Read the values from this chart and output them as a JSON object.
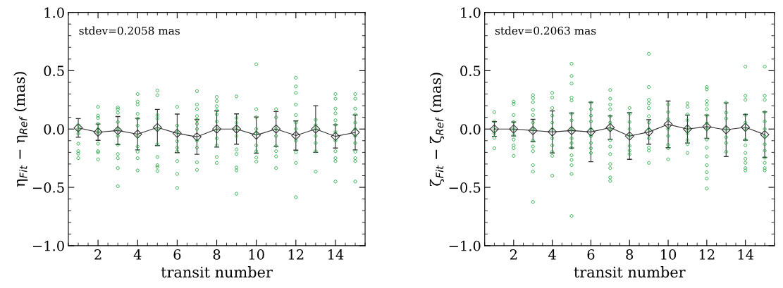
{
  "chart_data": [
    {
      "type": "scatter",
      "xlabel": "transit number",
      "ylabel": "η$_{Fit}$ − η$_{Ref}$ (mas)",
      "xlim": [
        0.5,
        15.5
      ],
      "xticks": [
        2,
        4,
        6,
        8,
        10,
        12,
        14
      ],
      "ylim": [
        -1.0,
        1.0
      ],
      "yticks": [
        {
          "value": -1.0,
          "label": "−1.0"
        },
        {
          "value": -0.5,
          "label": "−0.5"
        },
        {
          "value": 0.0,
          "label": "0.0"
        },
        {
          "value": 0.5,
          "label": "0.5"
        },
        {
          "value": 1.0,
          "label": "1.0"
        }
      ],
      "annotations": [
        "stdev=0.2058 mas"
      ],
      "series": [
        {
          "marker": "circle",
          "color": "#22aa44",
          "x": [
            1,
            1,
            1,
            1,
            1,
            1,
            1,
            2,
            2,
            2,
            2,
            2,
            2,
            2,
            2,
            2,
            2,
            3,
            3,
            3,
            3,
            3,
            3,
            3,
            3,
            3,
            3,
            3,
            4,
            4,
            4,
            4,
            4,
            4,
            4,
            4,
            4,
            4,
            4,
            5,
            5,
            5,
            5,
            5,
            5,
            5,
            5,
            5,
            5,
            6,
            6,
            6,
            6,
            6,
            6,
            6,
            6,
            6,
            7,
            7,
            7,
            7,
            7,
            7,
            7,
            7,
            7,
            7,
            7,
            8,
            8,
            8,
            8,
            8,
            8,
            8,
            8,
            8,
            8,
            8,
            9,
            9,
            9,
            9,
            9,
            9,
            9,
            9,
            9,
            9,
            10,
            10,
            10,
            10,
            10,
            10,
            10,
            10,
            10,
            11,
            11,
            11,
            11,
            11,
            11,
            11,
            11,
            12,
            12,
            12,
            12,
            12,
            12,
            12,
            12,
            12,
            12,
            12,
            13,
            13,
            13,
            13,
            13,
            13,
            13,
            14,
            14,
            14,
            14,
            14,
            14,
            14,
            14,
            14,
            14,
            14,
            14,
            15,
            15,
            15,
            15,
            15,
            15,
            15,
            15,
            15,
            15,
            15,
            15
          ],
          "values": [
            0.035,
            0,
            -0.04,
            -0.125,
            -0.19,
            -0.21,
            -0.25,
            0.19,
            0.115,
            0.095,
            0.045,
            0,
            -0.03,
            -0.125,
            -0.19,
            -0.2,
            -0.26,
            0.185,
            0.17,
            0.14,
            0.06,
            0,
            -0.06,
            -0.135,
            -0.215,
            -0.25,
            -0.335,
            -0.49,
            0.3,
            0.235,
            0.21,
            0.13,
            0.09,
            0.03,
            -0.06,
            -0.15,
            -0.195,
            -0.25,
            -0.355,
            0.33,
            0.29,
            0.12,
            0.09,
            0,
            -0.13,
            -0.24,
            -0.31,
            -0.325,
            -0.36,
            0.19,
            0.03,
            -0.03,
            -0.105,
            -0.16,
            -0.19,
            -0.275,
            -0.385,
            -0.505,
            0.325,
            0.21,
            0.17,
            0.11,
            0.075,
            0.045,
            0,
            -0.1,
            -0.16,
            -0.285,
            -0.35,
            0.275,
            0.24,
            0.195,
            0.16,
            0.125,
            0.065,
            0,
            -0.08,
            -0.14,
            -0.24,
            -0.29,
            0.28,
            0.095,
            0.055,
            0,
            -0.06,
            -0.175,
            -0.215,
            -0.33,
            -0.355,
            -0.555,
            0.555,
            0.17,
            0.1,
            0,
            -0.04,
            -0.14,
            -0.19,
            -0.245,
            -0.28,
            0.17,
            0.1,
            0,
            -0.06,
            -0.145,
            -0.19,
            -0.235,
            -0.335,
            0.44,
            0.365,
            0.31,
            0.21,
            0.12,
            0.055,
            0,
            -0.1,
            -0.2,
            -0.29,
            -0.585,
            0.08,
            0.035,
            0,
            -0.06,
            -0.12,
            -0.19,
            -0.365,
            0.3,
            0.26,
            0.175,
            0.135,
            0.075,
            0.035,
            -0.025,
            -0.1,
            -0.19,
            -0.25,
            -0.275,
            -0.45,
            0.3,
            0.26,
            0.175,
            0.125,
            0.055,
            0,
            -0.06,
            -0.12,
            -0.195,
            -0.25,
            -0.275,
            -0.45
          ]
        },
        {
          "type": "line",
          "marker": "diamond",
          "color": "#333333",
          "x": [
            1,
            2,
            3,
            4,
            5,
            6,
            7,
            8,
            9,
            10,
            11,
            12,
            13,
            14,
            15
          ],
          "values": [
            0.01,
            -0.027,
            -0.013,
            -0.044,
            0.013,
            -0.037,
            -0.067,
            0,
            0,
            -0.052,
            0,
            -0.056,
            0,
            -0.063,
            -0.029
          ],
          "errors": [
            0.08,
            0.07,
            0.12,
            0.135,
            0.155,
            0.165,
            0.15,
            0.155,
            0.13,
            0.155,
            0.15,
            0.125,
            0.2,
            0.1,
            0.15
          ]
        }
      ]
    },
    {
      "type": "scatter",
      "xlabel": "transit number",
      "ylabel": "ζ$_{Fit}$ − ζ$_{Ref}$ (mas)",
      "xlim": [
        0.5,
        15.5
      ],
      "xticks": [
        2,
        4,
        6,
        8,
        10,
        12,
        14
      ],
      "ylim": [
        -1.0,
        1.0
      ],
      "yticks": [
        {
          "value": -1.0,
          "label": "−1.0"
        },
        {
          "value": -0.5,
          "label": "−0.5"
        },
        {
          "value": 0.0,
          "label": "0.0"
        },
        {
          "value": 0.5,
          "label": "0.5"
        },
        {
          "value": 1.0,
          "label": "1.0"
        }
      ],
      "annotations": [
        "stdev=0.2063 mas"
      ],
      "series": [
        {
          "marker": "circle",
          "color": "#22aa44",
          "x": [
            1,
            1,
            1,
            1,
            1,
            1,
            2,
            2,
            2,
            2,
            2,
            2,
            2,
            2,
            2,
            2,
            3,
            3,
            3,
            3,
            3,
            3,
            3,
            3,
            3,
            3,
            3,
            3,
            3,
            4,
            4,
            4,
            4,
            4,
            4,
            4,
            4,
            4,
            4,
            4,
            5,
            5,
            5,
            5,
            5,
            5,
            5,
            5,
            5,
            5,
            5,
            5,
            5,
            5,
            5,
            5,
            6,
            6,
            6,
            6,
            6,
            6,
            6,
            6,
            6,
            7,
            7,
            7,
            7,
            7,
            7,
            7,
            7,
            7,
            7,
            7,
            7,
            7,
            7,
            8,
            8,
            8,
            8,
            8,
            8,
            8,
            8,
            9,
            9,
            9,
            9,
            9,
            9,
            9,
            9,
            9,
            9,
            9,
            9,
            10,
            10,
            10,
            10,
            10,
            10,
            10,
            10,
            11,
            11,
            11,
            11,
            11,
            11,
            11,
            11,
            11,
            12,
            12,
            12,
            12,
            12,
            12,
            12,
            12,
            12,
            12,
            12,
            12,
            12,
            12,
            12,
            13,
            13,
            13,
            13,
            13,
            13,
            13,
            14,
            14,
            14,
            14,
            14,
            14,
            14,
            14,
            14,
            14,
            14,
            14,
            14,
            15,
            15,
            15,
            15,
            15,
            15,
            15,
            15,
            15,
            15,
            15,
            15,
            15
          ],
          "values": [
            0.145,
            0.065,
            0,
            -0.04,
            -0.075,
            -0.165,
            0.235,
            0.215,
            0.12,
            0.06,
            0,
            -0.05,
            -0.09,
            -0.14,
            -0.165,
            -0.23,
            0.29,
            0.265,
            0.23,
            0.165,
            0.12,
            0.055,
            0,
            -0.1,
            -0.15,
            -0.19,
            -0.31,
            -0.365,
            -0.625,
            0.31,
            0.27,
            0.18,
            0.115,
            0.055,
            0,
            -0.08,
            -0.14,
            -0.195,
            -0.23,
            -0.4,
            0.56,
            0.455,
            0.39,
            0.27,
            0.245,
            0.13,
            0.075,
            0,
            -0.08,
            -0.12,
            -0.16,
            -0.225,
            -0.265,
            -0.31,
            -0.385,
            -0.745,
            0.225,
            0.17,
            0.115,
            0.065,
            0,
            -0.06,
            -0.12,
            -0.165,
            -0.205,
            0.335,
            0.26,
            0.21,
            0.17,
            0.11,
            0.055,
            0,
            -0.095,
            -0.15,
            -0.215,
            -0.3,
            -0.335,
            -0.415,
            -0.445,
            0.18,
            0.13,
            0.06,
            0,
            -0.06,
            -0.145,
            -0.185,
            -0.215,
            0.645,
            0.36,
            0.25,
            0.22,
            0.18,
            0.11,
            0.055,
            0,
            -0.08,
            -0.16,
            -0.185,
            -0.29,
            0.21,
            0.145,
            0.085,
            0,
            -0.06,
            -0.135,
            -0.165,
            -0.26,
            0.22,
            0.19,
            0.125,
            0.075,
            0,
            -0.04,
            -0.095,
            -0.13,
            -0.205,
            0.36,
            0.34,
            0.24,
            0.21,
            0.17,
            0.115,
            0.05,
            0,
            -0.09,
            -0.16,
            -0.235,
            -0.31,
            -0.37,
            -0.425,
            -0.51,
            0.225,
            0.14,
            0.09,
            0,
            -0.07,
            -0.12,
            -0.195,
            0.535,
            0.285,
            0.25,
            0.12,
            0.055,
            0,
            -0.09,
            -0.14,
            -0.205,
            -0.255,
            -0.29,
            -0.335,
            -0.355,
            0.535,
            0.285,
            0.25,
            0.145,
            0.065,
            0,
            -0.065,
            -0.13,
            -0.185,
            -0.245,
            -0.29,
            -0.335,
            -0.355
          ]
        },
        {
          "type": "line",
          "marker": "diamond",
          "color": "#333333",
          "x": [
            1,
            2,
            3,
            4,
            5,
            6,
            7,
            8,
            9,
            10,
            11,
            12,
            13,
            14,
            15
          ],
          "values": [
            0,
            0,
            -0.013,
            -0.025,
            -0.013,
            -0.025,
            0.012,
            -0.06,
            -0.025,
            0.04,
            0,
            0.02,
            -0.006,
            0.015,
            -0.048
          ],
          "errors": [
            0.063,
            0.06,
            0.096,
            0.18,
            0.15,
            0.255,
            0.1,
            0.2,
            0.105,
            0.2,
            0.12,
            0.1,
            0.23,
            0.11,
            0.195
          ]
        }
      ]
    }
  ]
}
